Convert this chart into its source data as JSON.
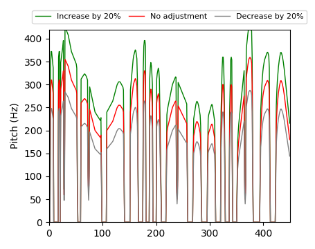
{
  "ylabel": "Pitch (Hz)",
  "ylim": [
    0,
    420
  ],
  "xlim": [
    0,
    450
  ],
  "xticks": [
    0,
    100,
    200,
    300,
    400
  ],
  "yticks": [
    0,
    50,
    100,
    150,
    200,
    250,
    300,
    350,
    400
  ],
  "line_increase_color": "#008000",
  "line_base_color": "#ff0000",
  "line_decrease_color": "#808080",
  "line_width": 1.0,
  "legend_labels": [
    "Increase by 20%",
    "No adjustment",
    "Decrease by 20%"
  ],
  "increase_factor": 1.2,
  "decrease_factor": 0.8,
  "figsize": [
    4.56,
    3.6
  ],
  "dpi": 100
}
